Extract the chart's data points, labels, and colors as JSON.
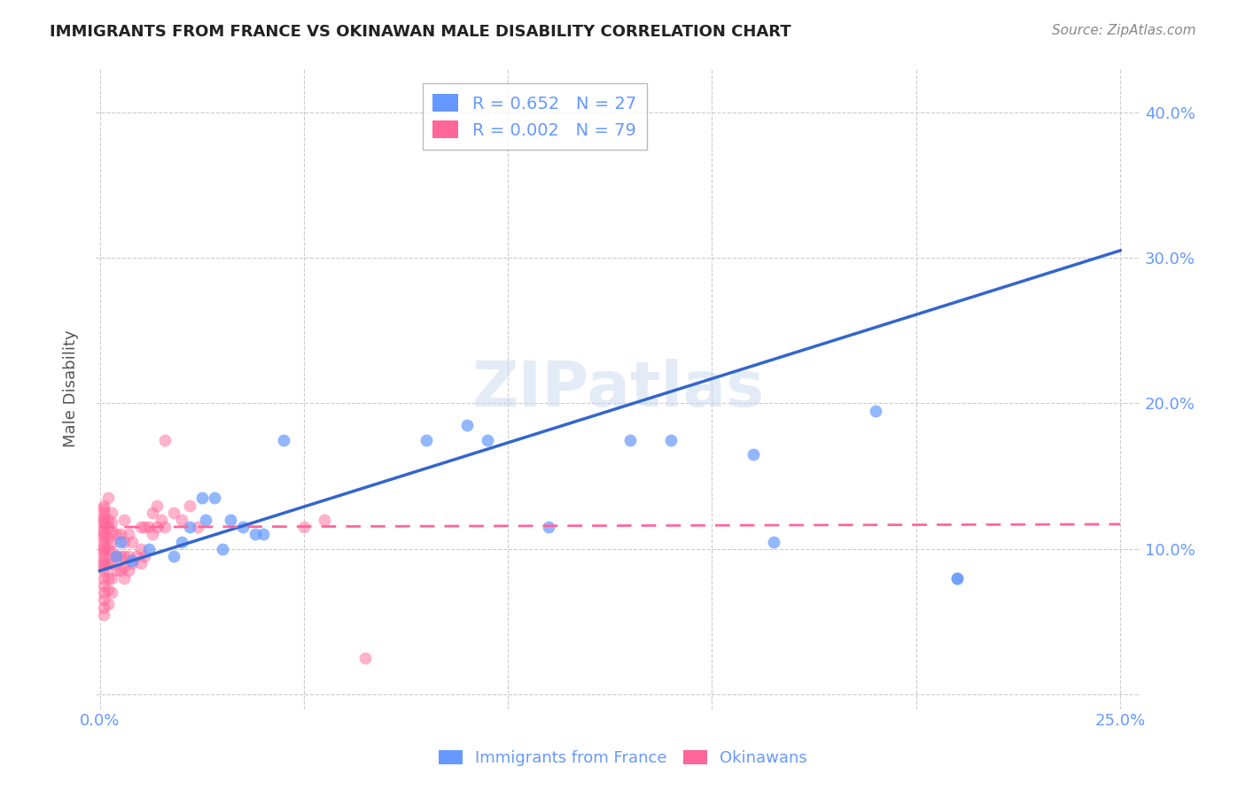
{
  "title": "IMMIGRANTS FROM FRANCE VS OKINAWAN MALE DISABILITY CORRELATION CHART",
  "source": "Source: ZipAtlas.com",
  "xlabel_label": "",
  "ylabel_label": "Male Disability",
  "x_min": -0.001,
  "x_max": 0.255,
  "y_min": -0.01,
  "y_max": 0.43,
  "x_ticks": [
    0.0,
    0.05,
    0.1,
    0.15,
    0.2,
    0.25
  ],
  "x_tick_labels": [
    "0.0%",
    "",
    "",
    "",
    "",
    "25.0%"
  ],
  "y_ticks": [
    0.0,
    0.1,
    0.2,
    0.3,
    0.4
  ],
  "y_tick_labels": [
    "",
    "10.0%",
    "20.0%",
    "30.0%",
    "40.0%"
  ],
  "blue_R": "0.652",
  "blue_N": "27",
  "pink_R": "0.002",
  "pink_N": "79",
  "blue_color": "#6699ff",
  "pink_color": "#ff6699",
  "blue_line_color": "#3366cc",
  "pink_line_color": "#ff6699",
  "watermark": "ZIPatlas",
  "blue_scatter_x": [
    0.004,
    0.018,
    0.025,
    0.028,
    0.032,
    0.035,
    0.038,
    0.005,
    0.008,
    0.012,
    0.02,
    0.022,
    0.026,
    0.03,
    0.04,
    0.045,
    0.08,
    0.09,
    0.095,
    0.11,
    0.13,
    0.14,
    0.16,
    0.165,
    0.19,
    0.21,
    0.21
  ],
  "blue_scatter_y": [
    0.095,
    0.095,
    0.135,
    0.135,
    0.12,
    0.115,
    0.11,
    0.105,
    0.092,
    0.1,
    0.105,
    0.115,
    0.12,
    0.1,
    0.11,
    0.175,
    0.175,
    0.185,
    0.175,
    0.115,
    0.175,
    0.175,
    0.165,
    0.105,
    0.195,
    0.08,
    0.08
  ],
  "pink_scatter_x": [
    0.001,
    0.001,
    0.001,
    0.001,
    0.001,
    0.001,
    0.001,
    0.001,
    0.001,
    0.001,
    0.001,
    0.001,
    0.001,
    0.001,
    0.001,
    0.001,
    0.001,
    0.001,
    0.001,
    0.001,
    0.001,
    0.001,
    0.001,
    0.001,
    0.001,
    0.002,
    0.002,
    0.002,
    0.002,
    0.002,
    0.002,
    0.002,
    0.002,
    0.002,
    0.003,
    0.003,
    0.003,
    0.003,
    0.003,
    0.003,
    0.003,
    0.003,
    0.004,
    0.004,
    0.004,
    0.005,
    0.005,
    0.005,
    0.006,
    0.006,
    0.006,
    0.006,
    0.006,
    0.007,
    0.007,
    0.007,
    0.008,
    0.008,
    0.009,
    0.01,
    0.01,
    0.01,
    0.011,
    0.011,
    0.012,
    0.013,
    0.013,
    0.014,
    0.014,
    0.015,
    0.016,
    0.016,
    0.018,
    0.02,
    0.022,
    0.024,
    0.05,
    0.055,
    0.065
  ],
  "pink_scatter_y": [
    0.055,
    0.06,
    0.065,
    0.07,
    0.075,
    0.08,
    0.085,
    0.088,
    0.09,
    0.092,
    0.095,
    0.098,
    0.1,
    0.102,
    0.105,
    0.108,
    0.11,
    0.112,
    0.115,
    0.118,
    0.12,
    0.122,
    0.125,
    0.128,
    0.13,
    0.062,
    0.072,
    0.08,
    0.09,
    0.1,
    0.108,
    0.115,
    0.12,
    0.135,
    0.07,
    0.08,
    0.09,
    0.098,
    0.105,
    0.112,
    0.118,
    0.125,
    0.085,
    0.095,
    0.11,
    0.085,
    0.095,
    0.11,
    0.08,
    0.088,
    0.095,
    0.105,
    0.12,
    0.085,
    0.095,
    0.11,
    0.09,
    0.105,
    0.095,
    0.09,
    0.1,
    0.115,
    0.095,
    0.115,
    0.115,
    0.11,
    0.125,
    0.115,
    0.13,
    0.12,
    0.175,
    0.115,
    0.125,
    0.12,
    0.13,
    0.115,
    0.115,
    0.12,
    0.025
  ]
}
